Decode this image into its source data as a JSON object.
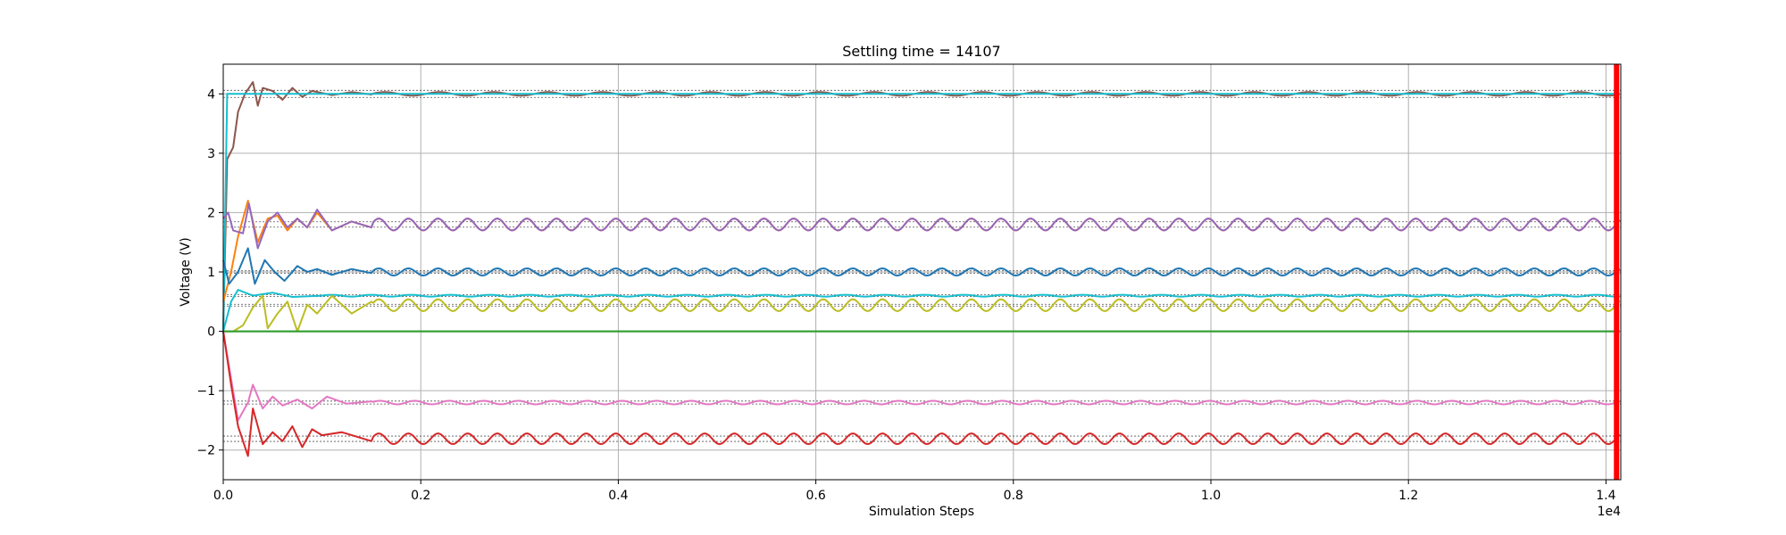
{
  "chart_data": {
    "type": "line",
    "title": "Settling time = 14107",
    "xlabel": "Simulation Steps",
    "ylabel": "Voltage (V)",
    "x_offset_text": "1e4",
    "xlim": [
      0,
      14150
    ],
    "ylim": [
      -2.5,
      4.5
    ],
    "x_ticks": [
      0,
      2000,
      4000,
      6000,
      8000,
      10000,
      12000,
      14000
    ],
    "x_tick_labels": [
      "0.0",
      "0.2",
      "0.4",
      "0.6",
      "0.8",
      "1.0",
      "1.2",
      "1.4"
    ],
    "y_ticks": [
      -2,
      -1,
      0,
      1,
      2,
      3,
      4
    ],
    "y_tick_labels": [
      "−2",
      "−1",
      "0",
      "1",
      "2",
      "3",
      "4"
    ],
    "grid": true,
    "settling_marker": {
      "x": 14107,
      "color": "#ff0000"
    },
    "reference_bands": [
      [
        3.94,
        4.06
      ],
      [
        1.755,
        1.845
      ],
      [
        0.98,
        1.02
      ],
      [
        0.585,
        0.615
      ],
      [
        0.425,
        0.455
      ],
      [
        -1.225,
        -1.175
      ],
      [
        -1.855,
        -1.765
      ]
    ],
    "series": [
      {
        "color": "#8c564b",
        "start": 0,
        "settle": 4.0,
        "amp": 0.03,
        "period": 550,
        "transient": [
          [
            0,
            0
          ],
          [
            40,
            2.9
          ],
          [
            100,
            3.1
          ],
          [
            150,
            3.7
          ],
          [
            220,
            4.0
          ],
          [
            300,
            4.2
          ],
          [
            350,
            3.8
          ],
          [
            400,
            4.1
          ],
          [
            500,
            4.05
          ],
          [
            600,
            3.9
          ],
          [
            700,
            4.1
          ],
          [
            800,
            3.95
          ],
          [
            900,
            4.05
          ],
          [
            1100,
            3.98
          ],
          [
            1300,
            4.03
          ],
          [
            1500,
            3.99
          ]
        ],
        "transient_end": 1500
      },
      {
        "color": "#17becf",
        "start": 0,
        "settle": 4.0,
        "amp": 0.0,
        "period": 550,
        "transient": [
          [
            0,
            0
          ],
          [
            40,
            4.0
          ]
        ],
        "transient_end": 40
      },
      {
        "color": "#ff7f0e",
        "start": 0,
        "settle": 1.8,
        "amp": 0.1,
        "period": 300,
        "transient": [
          [
            0,
            0.5
          ],
          [
            80,
            1.0
          ],
          [
            150,
            1.6
          ],
          [
            250,
            2.2
          ],
          [
            350,
            1.5
          ],
          [
            450,
            1.9
          ],
          [
            550,
            1.95
          ],
          [
            650,
            1.7
          ],
          [
            750,
            1.9
          ],
          [
            850,
            1.75
          ],
          [
            950,
            2.0
          ],
          [
            1100,
            1.7
          ],
          [
            1300,
            1.85
          ],
          [
            1500,
            1.75
          ]
        ],
        "transient_end": 1500
      },
      {
        "color": "#9467bd",
        "start": 0,
        "settle": 1.8,
        "amp": 0.1,
        "period": 300,
        "transient": [
          [
            0,
            1.9
          ],
          [
            50,
            2.0
          ],
          [
            100,
            1.7
          ],
          [
            200,
            1.65
          ],
          [
            260,
            2.15
          ],
          [
            350,
            1.4
          ],
          [
            450,
            1.85
          ],
          [
            550,
            2.0
          ],
          [
            650,
            1.75
          ],
          [
            750,
            1.9
          ],
          [
            850,
            1.75
          ],
          [
            950,
            2.05
          ],
          [
            1100,
            1.7
          ],
          [
            1300,
            1.85
          ],
          [
            1500,
            1.75
          ]
        ],
        "transient_end": 1500
      },
      {
        "color": "#1f77b4",
        "start": 0,
        "settle": 1.0,
        "amp": 0.06,
        "period": 300,
        "transient": [
          [
            0,
            1.2
          ],
          [
            60,
            0.8
          ],
          [
            150,
            1.0
          ],
          [
            250,
            1.4
          ],
          [
            320,
            0.8
          ],
          [
            420,
            1.2
          ],
          [
            520,
            1.0
          ],
          [
            620,
            0.85
          ],
          [
            750,
            1.1
          ],
          [
            850,
            1.0
          ],
          [
            950,
            1.05
          ],
          [
            1100,
            0.95
          ],
          [
            1300,
            1.05
          ],
          [
            1500,
            0.98
          ]
        ],
        "transient_end": 1500
      },
      {
        "color": "#17becf",
        "start": 0,
        "settle": 0.6,
        "amp": 0.015,
        "period": 400,
        "transient": [
          [
            0,
            0
          ],
          [
            80,
            0.5
          ],
          [
            150,
            0.7
          ],
          [
            300,
            0.6
          ],
          [
            500,
            0.65
          ],
          [
            700,
            0.58
          ],
          [
            1000,
            0.6
          ]
        ],
        "transient_end": 1000
      },
      {
        "color": "#bcbd22",
        "start": 0,
        "settle": 0.44,
        "amp": 0.1,
        "period": 300,
        "transient": [
          [
            0,
            0
          ],
          [
            100,
            0.0
          ],
          [
            200,
            0.1
          ],
          [
            300,
            0.4
          ],
          [
            400,
            0.6
          ],
          [
            450,
            0.05
          ],
          [
            550,
            0.3
          ],
          [
            650,
            0.5
          ],
          [
            750,
            0.0
          ],
          [
            850,
            0.45
          ],
          [
            950,
            0.3
          ],
          [
            1100,
            0.6
          ],
          [
            1300,
            0.3
          ],
          [
            1500,
            0.5
          ]
        ],
        "transient_end": 1500
      },
      {
        "color": "#7f7f7f",
        "start": 0,
        "settle": 0.0,
        "amp": 0.0,
        "period": 300,
        "transient": [
          [
            0,
            0
          ]
        ],
        "transient_end": 0
      },
      {
        "color": "#2ca02c",
        "start": 0,
        "settle": 0.0,
        "amp": 0.0,
        "period": 300,
        "transient": [
          [
            0,
            0
          ]
        ],
        "transient_end": 0
      },
      {
        "color": "#e377c2",
        "start": 0,
        "settle": -1.2,
        "amp": 0.03,
        "period": 350,
        "transient": [
          [
            0,
            0
          ],
          [
            80,
            -0.8
          ],
          [
            150,
            -1.5
          ],
          [
            250,
            -1.2
          ],
          [
            300,
            -0.9
          ],
          [
            400,
            -1.3
          ],
          [
            500,
            -1.1
          ],
          [
            600,
            -1.25
          ],
          [
            750,
            -1.15
          ],
          [
            900,
            -1.3
          ],
          [
            1050,
            -1.1
          ],
          [
            1250,
            -1.22
          ],
          [
            1500,
            -1.18
          ]
        ],
        "transient_end": 1500
      },
      {
        "color": "#d62728",
        "start": 0,
        "settle": -1.81,
        "amp": 0.09,
        "period": 300,
        "transient": [
          [
            0,
            0
          ],
          [
            80,
            -0.9
          ],
          [
            150,
            -1.6
          ],
          [
            250,
            -2.1
          ],
          [
            300,
            -1.3
          ],
          [
            400,
            -1.9
          ],
          [
            500,
            -1.7
          ],
          [
            600,
            -1.85
          ],
          [
            700,
            -1.6
          ],
          [
            800,
            -1.95
          ],
          [
            900,
            -1.65
          ],
          [
            1000,
            -1.75
          ],
          [
            1200,
            -1.7
          ],
          [
            1500,
            -1.85
          ]
        ],
        "transient_end": 1500
      }
    ]
  }
}
